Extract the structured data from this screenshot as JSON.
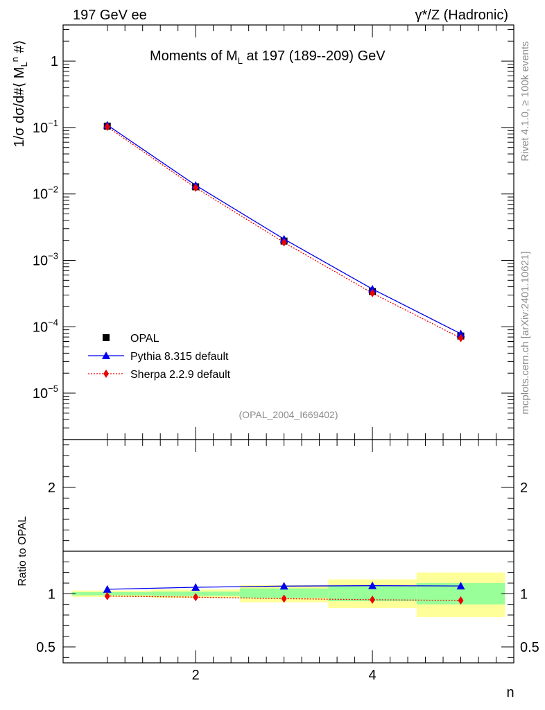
{
  "header": {
    "left": "197 GeV ee",
    "right": "γ*/Z (Hadronic)"
  },
  "side": {
    "rivet": "Rivet 4.1.0, ≥ 100k events",
    "mcplots": "mcplots.cern.ch [arXiv:2401.10621]"
  },
  "chart_data": [
    {
      "type": "line",
      "title": "Moments of M_L at 197 (189--209) GeV",
      "ylabel": "1/σ  dσ/d#⟨ M_L^n #⟩",
      "xlabel": "",
      "yscale": "log",
      "xlim": [
        0.5,
        5.6
      ],
      "ylim": [
        2e-06,
        3.5
      ],
      "yticks": [
        {
          "value": 1,
          "label": "1"
        },
        {
          "value": 0.1,
          "label": "10",
          "exp": "−1"
        },
        {
          "value": 0.01,
          "label": "10",
          "exp": "−2"
        },
        {
          "value": 0.001,
          "label": "10",
          "exp": "−3"
        },
        {
          "value": 0.0001,
          "label": "10",
          "exp": "−4"
        },
        {
          "value": 1e-05,
          "label": "10",
          "exp": "−5"
        }
      ],
      "watermark": "(OPAL_2004_I669402)",
      "series": [
        {
          "name": "OPAL",
          "marker": "square",
          "color": "#000000",
          "x": [
            1,
            2,
            3,
            4,
            5
          ],
          "y": [
            0.105,
            0.0128,
            0.00195,
            0.00034,
            7.25e-05
          ]
        },
        {
          "name": "Pythia 8.315 default",
          "marker": "triangle",
          "color": "#0000ee",
          "line": "solid",
          "x": [
            1,
            2,
            3,
            4,
            5
          ],
          "y": [
            0.109,
            0.0135,
            0.00209,
            0.00037,
            7.85e-05
          ]
        },
        {
          "name": "Sherpa 2.2.9 default",
          "marker": "diamond",
          "color": "#ee0000",
          "line": "dotted",
          "x": [
            1,
            2,
            3,
            4,
            5
          ],
          "y": [
            0.1025,
            0.0124,
            0.00186,
            0.000321,
            6.75e-05
          ]
        }
      ]
    },
    {
      "type": "line",
      "title": "",
      "ylabel": "Ratio to OPAL",
      "xlabel": "n",
      "xlim": [
        0.5,
        5.6
      ],
      "ylim": [
        0.35,
        2.45
      ],
      "xticks": [
        {
          "value": 2,
          "label": "2"
        },
        {
          "value": 4,
          "label": "4"
        }
      ],
      "yticks": [
        {
          "value": 0.5,
          "label": "0.5"
        },
        {
          "value": 1,
          "label": "1"
        },
        {
          "value": 2,
          "label": "2"
        }
      ],
      "bands": [
        {
          "xmin": 0.6,
          "xmax": 1.5,
          "inner": [
            0.985,
            1.015
          ],
          "outer": [
            0.97,
            1.03
          ]
        },
        {
          "xmin": 1.5,
          "xmax": 2.5,
          "inner": [
            0.98,
            1.02
          ],
          "outer": [
            0.96,
            1.04
          ]
        },
        {
          "xmin": 2.5,
          "xmax": 3.5,
          "inner": [
            0.96,
            1.05
          ],
          "outer": [
            0.92,
            1.08
          ]
        },
        {
          "xmin": 3.5,
          "xmax": 4.5,
          "inner": [
            0.93,
            1.075
          ],
          "outer": [
            0.865,
            1.135
          ]
        },
        {
          "xmin": 4.5,
          "xmax": 5.5,
          "inner": [
            0.9,
            1.1
          ],
          "outer": [
            0.78,
            1.2
          ]
        }
      ],
      "series": [
        {
          "name": "Pythia 8.315 default",
          "marker": "triangle",
          "color": "#0000ee",
          "x": [
            1,
            2,
            3,
            4,
            5
          ],
          "y": [
            1.042,
            1.061,
            1.072,
            1.076,
            1.073
          ]
        },
        {
          "name": "Sherpa 2.2.9 default",
          "marker": "diamond",
          "color": "#ee0000",
          "x": [
            1,
            2,
            3,
            4,
            5
          ],
          "y": [
            0.978,
            0.968,
            0.954,
            0.944,
            0.937
          ]
        }
      ]
    }
  ]
}
